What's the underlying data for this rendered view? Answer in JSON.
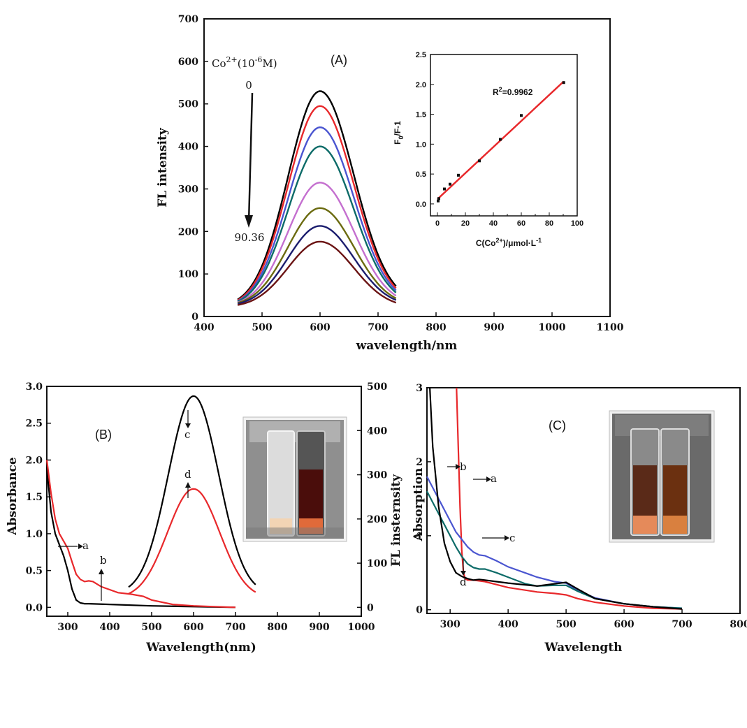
{
  "chart_data": [
    {
      "type": "line",
      "panel": "(A)",
      "xlabel": "wavelength/nm",
      "ylabel": "FL intensity",
      "xlim": [
        400,
        1100
      ],
      "ylim": [
        0,
        700
      ],
      "xticks": [
        400,
        500,
        600,
        700,
        800,
        900,
        1000,
        1100
      ],
      "yticks": [
        0,
        100,
        200,
        300,
        400,
        500,
        600,
        700
      ],
      "annotation": {
        "title_base": "Co",
        "title_sup": "2+",
        "title_rest": "(10",
        "title_sup2": "-6",
        "title_end": "M)",
        "start": "0",
        "end": "90.36"
      },
      "series": [
        {
          "color": "#000000",
          "peak": 530,
          "edge_left": 40,
          "edge_right": 70
        },
        {
          "color": "#e8282b",
          "peak": 495,
          "edge_left": 38,
          "edge_right": 65
        },
        {
          "color": "#4a55d0",
          "peak": 445,
          "edge_left": 36,
          "edge_right": 60
        },
        {
          "color": "#0c6b68",
          "peak": 400,
          "edge_left": 35,
          "edge_right": 55
        },
        {
          "color": "#c46fcf",
          "peak": 315,
          "edge_left": 33,
          "edge_right": 48
        },
        {
          "color": "#6b6b10",
          "peak": 255,
          "edge_left": 32,
          "edge_right": 42
        },
        {
          "color": "#1b1d6e",
          "peak": 213,
          "edge_left": 30,
          "edge_right": 38
        },
        {
          "color": "#6b1414",
          "peak": 176,
          "edge_left": 27,
          "edge_right": 32
        }
      ],
      "inset": {
        "type": "scatter",
        "xlabel_base": "C(Co",
        "xlabel_sup": "2+",
        "xlabel_rest": ")/μmol·L",
        "xlabel_sup2": "-1",
        "ylabel_base": "F",
        "ylabel_sub": "0",
        "ylabel_rest": "/F-1",
        "xlim": [
          -5,
          100
        ],
        "ylim": [
          -0.2,
          2.5
        ],
        "xticks": [
          0,
          10,
          20,
          30,
          40,
          50,
          60,
          70,
          80,
          90,
          100
        ],
        "yticks": [
          0.0,
          0.5,
          1.0,
          1.5,
          2.0,
          2.5
        ],
        "r2_base": "R",
        "r2_sup": "2",
        "r2_rest": "=0.9962",
        "x": [
          0.5,
          1,
          5,
          9,
          15,
          30,
          45,
          60,
          90.36
        ],
        "y": [
          0.05,
          0.09,
          0.25,
          0.33,
          0.48,
          0.72,
          1.08,
          1.48,
          2.03
        ],
        "fit": {
          "x": [
            0,
            90.36
          ],
          "y": [
            0.08,
            2.05
          ],
          "color": "#e8282b"
        }
      }
    },
    {
      "type": "line",
      "panel": "(B)",
      "xlabel": "Wavelength(nm)",
      "ylabel": "Absorbance",
      "y2label": "FL insternsity",
      "xlim": [
        250,
        1000
      ],
      "ylim": [
        -0.12,
        3.0
      ],
      "y2lim": [
        -20,
        500
      ],
      "xticks": [
        300,
        400,
        500,
        600,
        700,
        800,
        900,
        1000
      ],
      "yticks": [
        0.0,
        0.5,
        1.0,
        1.5,
        2.0,
        2.5,
        3.0
      ],
      "y2ticks": [
        0,
        100,
        200,
        300,
        400,
        500
      ],
      "labels": [
        "a",
        "b",
        "c",
        "d"
      ],
      "series": [
        {
          "name": "a",
          "axis": "left",
          "color": "#000000",
          "x": [
            250,
            260,
            270,
            280,
            290,
            300,
            310,
            320,
            330,
            340,
            350,
            400,
            500,
            600,
            700
          ],
          "y": [
            1.9,
            1.3,
            1.0,
            0.85,
            0.7,
            0.5,
            0.25,
            0.1,
            0.06,
            0.05,
            0.05,
            0.04,
            0.02,
            0.01,
            0.0
          ]
        },
        {
          "name": "b",
          "axis": "left",
          "color": "#e8282b",
          "x": [
            250,
            260,
            270,
            280,
            290,
            300,
            310,
            320,
            330,
            340,
            350,
            360,
            380,
            400,
            420,
            450,
            480,
            500,
            550,
            600,
            650,
            700
          ],
          "y": [
            2.0,
            1.55,
            1.2,
            1.0,
            0.9,
            0.8,
            0.62,
            0.45,
            0.38,
            0.35,
            0.36,
            0.35,
            0.28,
            0.24,
            0.2,
            0.18,
            0.15,
            0.1,
            0.04,
            0.02,
            0.01,
            0.0
          ]
        },
        {
          "name": "c",
          "axis": "right",
          "color": "#000000",
          "type": "gaussian",
          "x0": 445,
          "x1": 750,
          "center": 600,
          "peak": 478,
          "base": 30,
          "sigma": 60
        },
        {
          "name": "d",
          "axis": "right",
          "color": "#e8282b",
          "type": "gaussian",
          "x0": 445,
          "x1": 750,
          "center": 600,
          "peak": 268,
          "base": 20,
          "sigma": 62
        }
      ]
    },
    {
      "type": "line",
      "panel": "(C)",
      "xlabel": "Wavelength",
      "ylabel": "Absorption",
      "xlim": [
        260,
        800
      ],
      "ylim": [
        -0.05,
        3.0
      ],
      "xticks": [
        300,
        400,
        500,
        600,
        700,
        800
      ],
      "yticks": [
        0,
        1,
        2,
        3
      ],
      "labels": [
        "a",
        "b",
        "c",
        "d"
      ],
      "series": [
        {
          "name": "a",
          "color": "#e8282b",
          "x": [
            311,
            314,
            317,
            320,
            323,
            326,
            330,
            335,
            340,
            360,
            400,
            450,
            480,
            500,
            520,
            550,
            600,
            650,
            700
          ],
          "y": [
            3.0,
            2.2,
            1.4,
            0.8,
            0.5,
            0.42,
            0.4,
            0.4,
            0.4,
            0.38,
            0.3,
            0.24,
            0.22,
            0.2,
            0.15,
            0.1,
            0.05,
            0.02,
            0.01
          ]
        },
        {
          "name": "b",
          "color": "#4a55d0",
          "x": [
            260,
            270,
            280,
            290,
            300,
            310,
            320,
            330,
            340,
            350,
            360,
            380,
            400,
            450,
            480,
            500,
            520,
            550,
            600,
            650,
            700
          ],
          "y": [
            1.8,
            1.65,
            1.5,
            1.35,
            1.2,
            1.05,
            0.95,
            0.85,
            0.78,
            0.74,
            0.73,
            0.66,
            0.58,
            0.44,
            0.38,
            0.36,
            0.26,
            0.16,
            0.08,
            0.04,
            0.02
          ]
        },
        {
          "name": "c",
          "color": "#0c6b68",
          "x": [
            260,
            270,
            280,
            290,
            300,
            310,
            320,
            330,
            340,
            350,
            360,
            380,
            400,
            430,
            450,
            480,
            500,
            520,
            550,
            600,
            650,
            700
          ],
          "y": [
            1.6,
            1.45,
            1.3,
            1.15,
            1.0,
            0.85,
            0.72,
            0.62,
            0.57,
            0.55,
            0.55,
            0.5,
            0.44,
            0.35,
            0.32,
            0.33,
            0.33,
            0.25,
            0.15,
            0.08,
            0.04,
            0.02
          ]
        },
        {
          "name": "d",
          "color": "#000000",
          "x": [
            265,
            270,
            280,
            290,
            300,
            310,
            320,
            330,
            340,
            350,
            360,
            380,
            400,
            450,
            480,
            500,
            520,
            550,
            600,
            650,
            700
          ],
          "y": [
            3.0,
            2.2,
            1.4,
            0.9,
            0.65,
            0.5,
            0.45,
            0.42,
            0.4,
            0.41,
            0.4,
            0.38,
            0.36,
            0.32,
            0.35,
            0.37,
            0.28,
            0.15,
            0.08,
            0.04,
            0.01
          ]
        }
      ]
    }
  ],
  "photos": {
    "B": {
      "glass_color": "#f3ece6",
      "liquid_left": "#f2d4b4",
      "liquid_right": "#4a0d0b",
      "bg": "#9a9a9a"
    },
    "C": {
      "glass_color": "#e3d7cc",
      "liquid_left": "#5a2a18",
      "liquid_right": "#6b3010",
      "bg": "#6e6e6e"
    }
  }
}
